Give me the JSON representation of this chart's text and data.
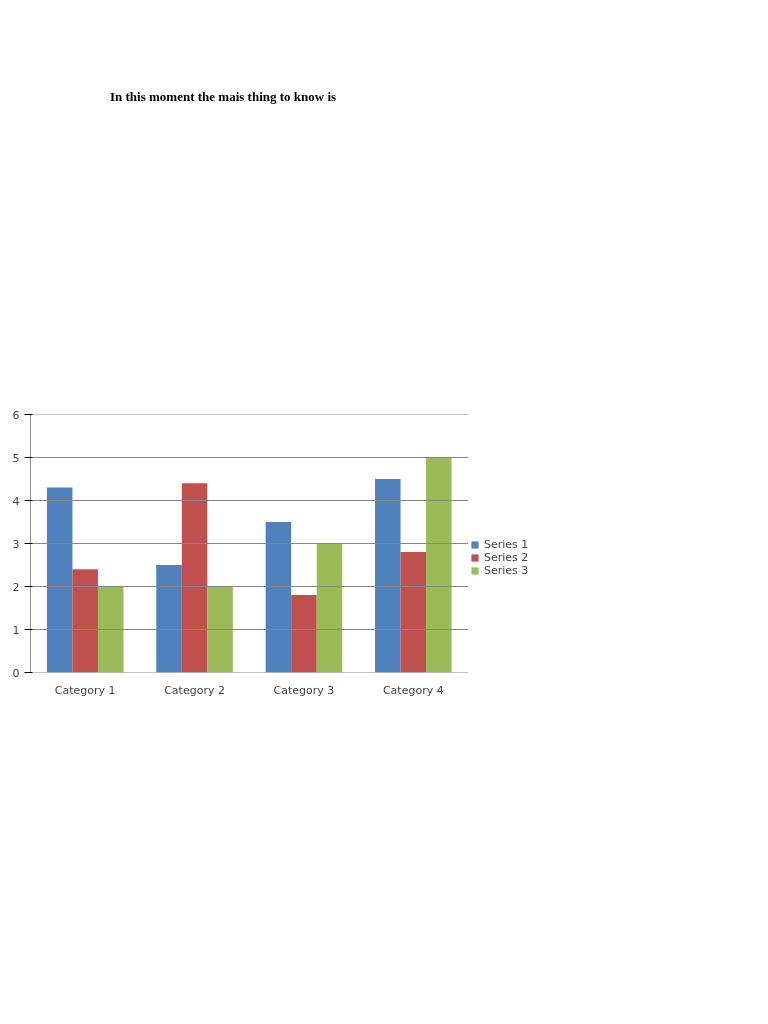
{
  "chart_data": {
    "type": "bar",
    "title": "In this moment the mais thing to know is",
    "categories": [
      "Category 1",
      "Category 2",
      "Category 3",
      "Category 4"
    ],
    "series": [
      {
        "name": "Series 1",
        "color": "#4f81bd",
        "values": [
          4.3,
          2.5,
          3.5,
          4.5
        ]
      },
      {
        "name": "Series 2",
        "color": "#c0504d",
        "values": [
          2.4,
          4.4,
          1.8,
          2.8
        ]
      },
      {
        "name": "Series 3",
        "color": "#9bbb59",
        "values": [
          2,
          2,
          3,
          5
        ]
      }
    ],
    "ylim": [
      0,
      6
    ],
    "yticks": [
      0,
      1,
      2,
      3,
      4,
      5,
      6
    ],
    "grid": "y",
    "legend": "right"
  }
}
